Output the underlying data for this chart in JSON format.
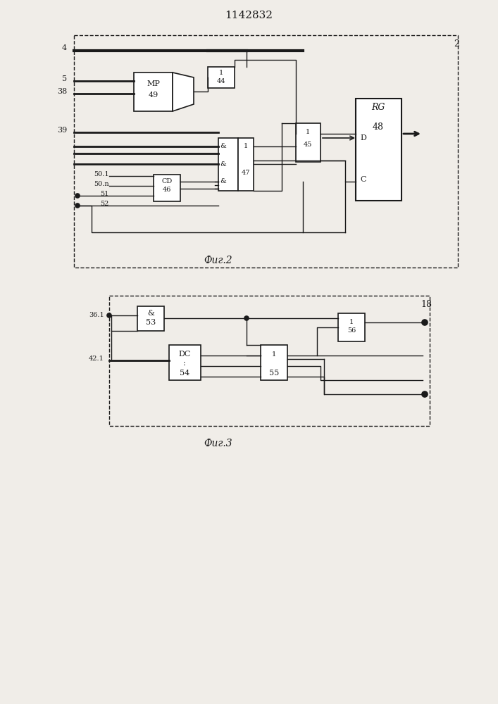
{
  "title": "1142832",
  "fig2_label": "Фиг.2",
  "fig3_label": "Фиг.3",
  "bg_color": "#f0ede8",
  "line_color": "#1a1a1a",
  "box_color": "#1a1a1a"
}
